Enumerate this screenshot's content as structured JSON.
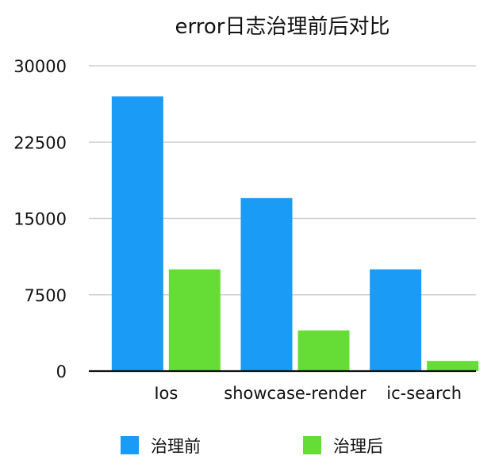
{
  "chart_data": {
    "type": "bar",
    "title": "error日志治理前后对比",
    "categories": [
      "Ios",
      "showcase-render",
      "ic-search"
    ],
    "series": [
      {
        "name": "治理前",
        "color": "#1a9bf5",
        "values": [
          27000,
          17000,
          10000
        ]
      },
      {
        "name": "治理后",
        "color": "#66dd37",
        "values": [
          10000,
          4000,
          1000
        ]
      }
    ],
    "y_ticks": [
      "0",
      "7500",
      "15000",
      "22500",
      "30000"
    ],
    "ylim": [
      0,
      30000
    ],
    "grid": true,
    "legend_position": "bottom"
  }
}
